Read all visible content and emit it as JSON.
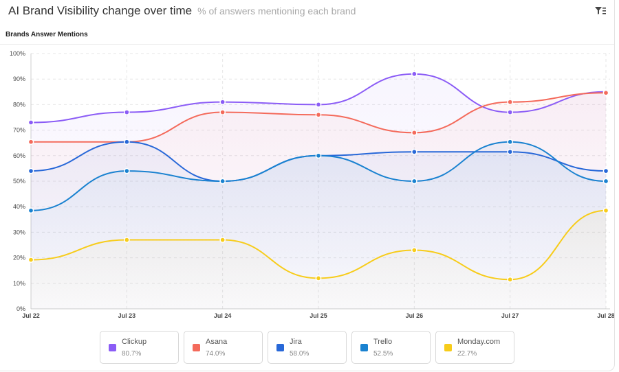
{
  "header": {
    "title": "AI Brand Visibility change over time",
    "subtitle": "% of answers mentioning each brand",
    "filter_icon": "filter-icon"
  },
  "section_title": "Brands Answer Mentions",
  "legend": [
    {
      "name": "Clickup",
      "value": "80.7%",
      "color": "#8b5cf6"
    },
    {
      "name": "Asana",
      "value": "74.0%",
      "color": "#f46a5b"
    },
    {
      "name": "Jira",
      "value": "58.0%",
      "color": "#2868d8"
    },
    {
      "name": "Trello",
      "value": "52.5%",
      "color": "#1a82d0"
    },
    {
      "name": "Monday.com",
      "value": "22.7%",
      "color": "#f7cc1a"
    }
  ],
  "chart_data": {
    "type": "line",
    "categories": [
      "Jul 22",
      "Jul 23",
      "Jul 24",
      "Jul 25",
      "Jul 26",
      "Jul 27",
      "Jul 28"
    ],
    "ylim": [
      0,
      100
    ],
    "yticks": [
      "0%",
      "10%",
      "20%",
      "30%",
      "40%",
      "50%",
      "60%",
      "70%",
      "80%",
      "90%",
      "100%"
    ],
    "grid": true,
    "series": [
      {
        "name": "Clickup",
        "color": "#8b5cf6",
        "values": [
          73,
          77,
          81,
          80,
          92,
          77,
          85
        ]
      },
      {
        "name": "Asana",
        "color": "#f46a5b",
        "values": [
          65.4,
          65.4,
          77,
          76,
          69,
          81,
          84.6
        ]
      },
      {
        "name": "Jira",
        "color": "#2868d8",
        "values": [
          54,
          65.4,
          50,
          60,
          61.5,
          61.5,
          54
        ]
      },
      {
        "name": "Trello",
        "color": "#1a82d0",
        "values": [
          38.5,
          54,
          50,
          60,
          50,
          65.4,
          50
        ]
      },
      {
        "name": "Monday.com",
        "color": "#f7cc1a",
        "values": [
          19.2,
          27,
          27,
          12,
          23,
          11.5,
          38.5
        ]
      }
    ]
  }
}
